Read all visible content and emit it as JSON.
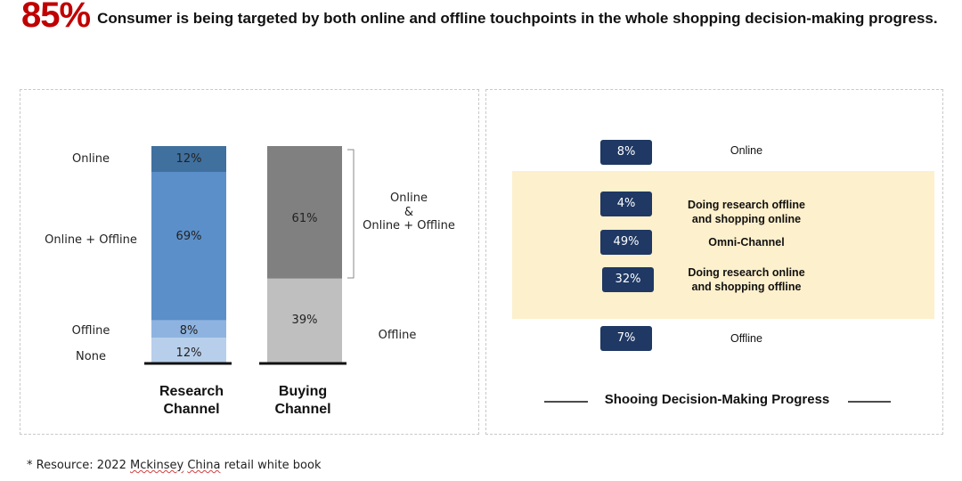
{
  "headline": {
    "big": "85%",
    "text": "Consumer is being targeted by both online and offline touchpoints in the whole shopping decision-making progress."
  },
  "footnote": {
    "prefix": "* Resource: 2022 ",
    "squiggle1": "Mckinsey",
    "middle": " ",
    "squiggle2": "China",
    "suffix": " retail white book"
  },
  "colors": {
    "accent": "#c00000",
    "online": "#40709e",
    "online_offline": "#5b8fc9",
    "offline": "#8eb3e0",
    "none": "#b8cfeb",
    "buy_top": "#808080",
    "buy_bottom": "#bfbfbf",
    "pill": "#1f3864",
    "highlight": "#fdf0cc"
  },
  "chart_data": [
    {
      "type": "bar",
      "stacked": true,
      "categories": [
        "Research Channel",
        "Buying Channel"
      ],
      "research_segments": [
        {
          "label": "Online",
          "value": 12,
          "text": "12%"
        },
        {
          "label": "Online + Offline",
          "value": 69,
          "text": "69%"
        },
        {
          "label": "Offline",
          "value": 8,
          "text": "8%"
        },
        {
          "label": "None",
          "value": 12,
          "text": "12%"
        }
      ],
      "buying_segments": [
        {
          "value": 61,
          "text": "61%"
        },
        {
          "value": 39,
          "text": "39%"
        }
      ],
      "buying_labels": {
        "top_line1": "Online",
        "top_line2": "&",
        "top_line3": "Online + Offline",
        "bottom": "Offline"
      },
      "axis_titles": {
        "research_line1": "Research",
        "research_line2": "Channel",
        "buying_line1": "Buying",
        "buying_line2": "Channel"
      }
    },
    {
      "type": "table",
      "title": "Shooing Decision-Making Progress",
      "rows": [
        {
          "value": "8%",
          "label_line1": "Online",
          "label_line2": "",
          "bold": false
        },
        {
          "value": "4%",
          "label_line1": "Doing research offline",
          "label_line2": "and shopping online",
          "bold": true
        },
        {
          "value": "49%",
          "label_line1": "Omni-Channel",
          "label_line2": "",
          "bold": true
        },
        {
          "value": "32%",
          "label_line1": "Doing research online",
          "label_line2": "and shopping offline",
          "bold": true
        },
        {
          "value": "7%",
          "label_line1": "Offline",
          "label_line2": "",
          "bold": false
        }
      ]
    }
  ]
}
